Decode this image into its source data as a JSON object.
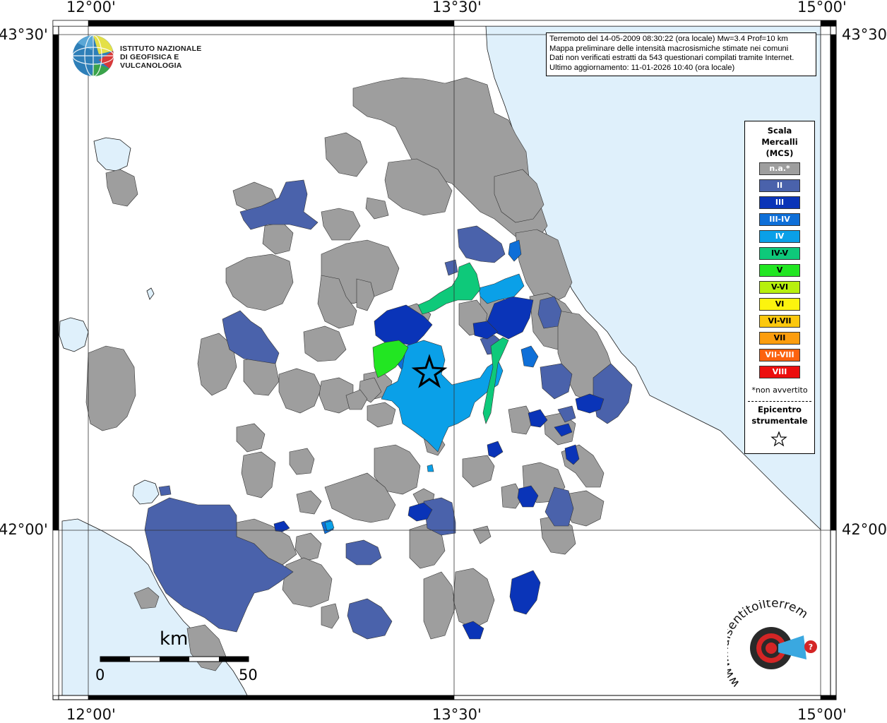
{
  "title_box": {
    "line1": "Terremoto del 14-05-2009 08:30:22 (ora locale) Mw=3.4 Prof=10 km",
    "line2": "Mappa preliminare delle intensità macrosismiche stimate nei comuni",
    "line3": "Dati non verificati estratti da 543 questionari compilati tramite Internet.",
    "line4": "Ultimo aggiornamento: 11-01-2026 10:40 (ora locale)"
  },
  "logo": {
    "line1": "ISTITUTO NAZIONALE",
    "line2": "DI GEOFISICA E VULCANOLOGIA"
  },
  "coords": {
    "top_left": "12°00'",
    "top_mid": "13°30'",
    "top_right": "15°00'",
    "bottom_left": "12°00'",
    "bottom_mid": "13°30'",
    "bottom_right": "15°00'",
    "left_top": "43°30'",
    "left_bottom": "42°00'",
    "right_top": "43°30'",
    "right_bottom": "42°00'"
  },
  "legend": {
    "title1": "Scala",
    "title2": "Mercalli",
    "title3": "(MCS)",
    "items": [
      {
        "label": "n.a.*",
        "color": "#9e9e9e",
        "text": "#ffffff"
      },
      {
        "label": "II",
        "color": "#4a62ab",
        "text": "#ffffff"
      },
      {
        "label": "III",
        "color": "#0a34b8",
        "text": "#ffffff"
      },
      {
        "label": "III-IV",
        "color": "#0e6fd8",
        "text": "#ffffff"
      },
      {
        "label": "IV",
        "color": "#0aa0e8",
        "text": "#ffffff"
      },
      {
        "label": "IV-V",
        "color": "#0ec97a",
        "text": "#000000"
      },
      {
        "label": "V",
        "color": "#22e622",
        "text": "#000000"
      },
      {
        "label": "V-VI",
        "color": "#b7f00e",
        "text": "#000000"
      },
      {
        "label": "VI",
        "color": "#fcf40e",
        "text": "#000000"
      },
      {
        "label": "VI-VII",
        "color": "#fcc80e",
        "text": "#000000"
      },
      {
        "label": "VII",
        "color": "#fc9d0e",
        "text": "#000000"
      },
      {
        "label": "VII-VIII",
        "color": "#fc620e",
        "text": "#ffffff"
      },
      {
        "label": "VIII",
        "color": "#ec0e0e",
        "text": "#ffffff"
      }
    ],
    "note": "*non avvertito",
    "epicentre1": "Epicentro",
    "epicentre2": "strumentale"
  },
  "scalebar": {
    "unit": "km",
    "min": "0",
    "max": "50"
  },
  "hsit": {
    "text": "www.haisentitoilterremoto.it"
  },
  "colors": {
    "sea": "#dff0fb",
    "na": "#9e9e9e",
    "ii": "#4a62ab",
    "iii": "#0a34b8",
    "iii_iv": "#0e6fd8",
    "iv": "#0aa0e8",
    "iv_v": "#0ec97a",
    "v": "#22e622"
  }
}
